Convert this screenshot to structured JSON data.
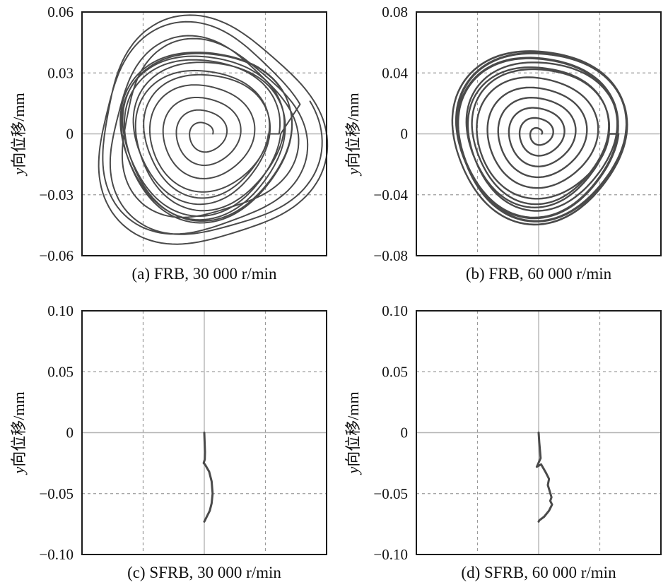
{
  "chart_data": [
    {
      "type": "line",
      "caption": "(a) FRB, 30 000 r/min",
      "ylabel_italic": "y",
      "ylabel_rest": "向位移/mm",
      "ylim": [
        -0.06,
        0.06
      ],
      "yticks": [
        "0.06",
        "0.03",
        "0",
        "−0.03",
        "−0.06"
      ],
      "pattern": "spiral",
      "inner_start_r": 0.004,
      "inner_end_r": 0.03,
      "inner_turns": 4,
      "band_r": [
        0.03,
        0.042
      ],
      "band_turns": 7,
      "outer_r": [
        0.042,
        0.056
      ],
      "outer_turns": 4,
      "center_x": 0.0,
      "center_y": 0.0
    },
    {
      "type": "line",
      "caption": "(b) FRB, 60 000 r/min",
      "ylabel_italic": "y",
      "ylabel_rest": "向位移/mm",
      "ylim": [
        -0.08,
        0.08
      ],
      "yticks": [
        "0.08",
        "0.04",
        "0",
        "−0.04",
        "−0.08"
      ],
      "pattern": "spiral",
      "inner_start_r": 0.002,
      "inner_end_r": 0.044,
      "inner_turns": 6,
      "band_r": [
        0.044,
        0.057
      ],
      "band_turns": 9,
      "outer_r": [
        0.057,
        0.057
      ],
      "outer_turns": 0,
      "center_x": 0.0,
      "center_y": 0.0
    },
    {
      "type": "line",
      "caption": "(c) SFRB, 30 000 r/min",
      "ylabel_italic": "y",
      "ylabel_rest": "向位移/mm",
      "ylim": [
        -0.1,
        0.1
      ],
      "yticks": [
        "0.10",
        "0.05",
        "0",
        "−0.05",
        "−0.10"
      ],
      "pattern": "path",
      "x": [
        0.0,
        0.0003,
        0.0006,
        0.0004,
        -0.0005,
        0.0005,
        0.004,
        0.006,
        0.0068,
        0.006,
        0.0045,
        0.002,
        0.0005,
        0.0
      ],
      "y": [
        0.0,
        -0.008,
        -0.016,
        -0.022,
        -0.025,
        -0.026,
        -0.032,
        -0.04,
        -0.05,
        -0.058,
        -0.064,
        -0.069,
        -0.072,
        -0.073
      ]
    },
    {
      "type": "line",
      "caption": "(d) SFRB, 60 000 r/min",
      "ylabel_italic": "y",
      "ylabel_rest": "向位移/mm",
      "ylim": [
        -0.1,
        0.1
      ],
      "yticks": [
        "0.10",
        "0.05",
        "0",
        "−0.05",
        "−0.10"
      ],
      "pattern": "path",
      "x": [
        0.0,
        0.0005,
        0.0012,
        0.0016,
        -0.0015,
        0.002,
        0.006,
        0.0085,
        0.0075,
        0.009,
        0.0105,
        0.0095,
        0.011,
        0.0085,
        0.0045,
        0.0005,
        0.0
      ],
      "y": [
        0.0,
        -0.008,
        -0.016,
        -0.021,
        -0.028,
        -0.026,
        -0.033,
        -0.038,
        -0.043,
        -0.048,
        -0.053,
        -0.056,
        -0.059,
        -0.064,
        -0.069,
        -0.072,
        -0.073
      ]
    }
  ]
}
